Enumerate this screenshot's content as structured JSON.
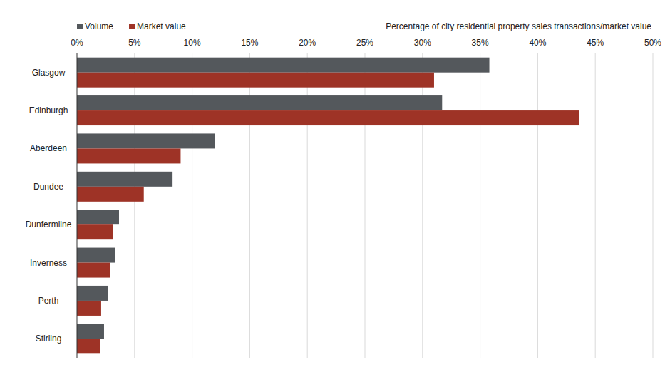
{
  "chart_data": {
    "type": "bar",
    "orientation": "horizontal",
    "x_label": "Percentage of city residential property sales transactions/market value",
    "categories": [
      "Glasgow",
      "Edinburgh",
      "Aberdeen",
      "Dundee",
      "Dunfermline",
      "Inverness",
      "Perth",
      "Stirling"
    ],
    "series": [
      {
        "name": "Volume",
        "color": "#54585c",
        "values": [
          35.8,
          31.7,
          12.0,
          8.3,
          3.65,
          3.3,
          2.7,
          2.35
        ]
      },
      {
        "name": "Market value",
        "color": "#9e3326",
        "values": [
          31.0,
          43.6,
          9.0,
          5.8,
          3.15,
          2.9,
          2.1,
          2.0
        ]
      }
    ],
    "xlim": [
      0,
      50
    ],
    "xticks": [
      {
        "value": 0,
        "label": "0%"
      },
      {
        "value": 5,
        "label": "5%"
      },
      {
        "value": 10,
        "label": "10%"
      },
      {
        "value": 15,
        "label": "15%"
      },
      {
        "value": 20,
        "label": "20%"
      },
      {
        "value": 25,
        "label": "25%"
      },
      {
        "value": 30,
        "label": "30%"
      },
      {
        "value": 35,
        "label": "35%"
      },
      {
        "value": 40,
        "label": "40%"
      },
      {
        "value": 45,
        "label": "45%"
      },
      {
        "value": 50,
        "label": "50%"
      }
    ],
    "grid": true,
    "legend": "top-left"
  }
}
